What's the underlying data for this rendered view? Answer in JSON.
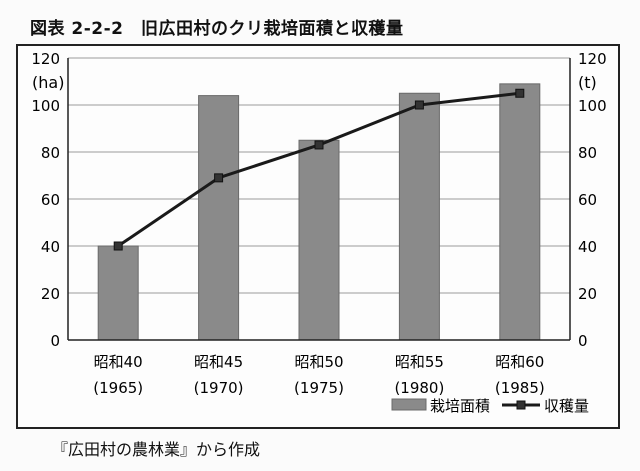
{
  "figure": {
    "title": "図表 2-2-2　旧広田村のクリ栽培面積と収穫量",
    "source": "『広田村の農林業』から作成"
  },
  "chart_data": {
    "type": "bar",
    "categories": [
      "昭和40\n(1965)",
      "昭和45\n(1970)",
      "昭和50\n(1975)",
      "昭和55\n(1980)",
      "昭和60\n(1985)"
    ],
    "series": [
      {
        "name": "栽培面積",
        "type": "bar",
        "axis": "left",
        "values": [
          40,
          104,
          85,
          105,
          109
        ],
        "color": "#8a8a8a"
      },
      {
        "name": "収穫量",
        "type": "line",
        "axis": "right",
        "values": [
          40,
          69,
          83,
          100,
          105
        ],
        "color": "#1a1a1a"
      }
    ],
    "ylabel_left": "(ha)",
    "ylabel_right": "(t)",
    "ylim_left": [
      0,
      120
    ],
    "ylim_right": [
      0,
      120
    ],
    "yticks": [
      0,
      20,
      40,
      60,
      80,
      100,
      120
    ],
    "grid": true,
    "legend": "bottom-right"
  }
}
